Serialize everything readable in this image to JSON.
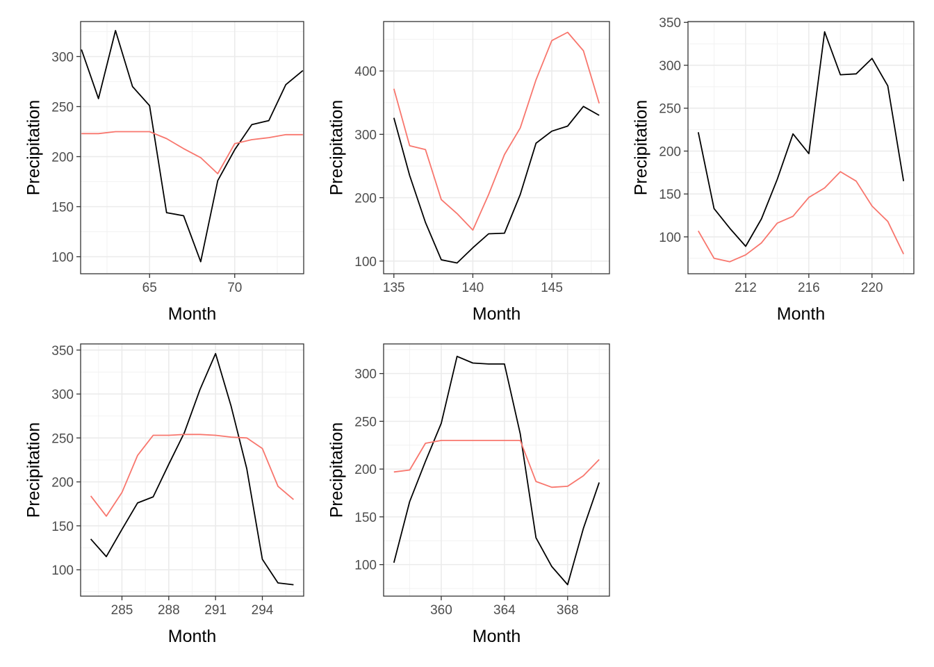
{
  "chart_data": [
    {
      "type": "line",
      "xlabel": "Month",
      "ylabel": "Precipitation",
      "xlim": [
        60.95,
        74.05
      ],
      "ylim": [
        83,
        335
      ],
      "x_ticks": [
        65,
        70
      ],
      "y_ticks": [
        100,
        150,
        200,
        250,
        300
      ],
      "grid": true,
      "series": [
        {
          "color": "#000000",
          "x": [
            61,
            62,
            63,
            64,
            65,
            66,
            67,
            68,
            69,
            70,
            71,
            72,
            73,
            74
          ],
          "y": [
            307,
            258,
            326,
            270,
            251,
            144,
            141,
            95,
            176,
            207,
            232,
            236,
            272,
            286
          ]
        },
        {
          "color": "#F8766D",
          "x": [
            61,
            62,
            63,
            64,
            65,
            66,
            67,
            68,
            69,
            70,
            71,
            72,
            73,
            74
          ],
          "y": [
            223,
            223,
            225,
            225,
            225,
            218,
            208,
            199,
            183,
            213,
            217,
            219,
            222,
            222
          ]
        }
      ]
    },
    {
      "type": "line",
      "xlabel": "Month",
      "ylabel": "Precipitation",
      "xlim": [
        134.35,
        148.65
      ],
      "ylim": [
        80,
        478
      ],
      "x_ticks": [
        135,
        140,
        145
      ],
      "y_ticks": [
        100,
        200,
        300,
        400
      ],
      "grid": true,
      "series": [
        {
          "color": "#000000",
          "x": [
            135,
            136,
            137,
            138,
            139,
            140,
            141,
            142,
            143,
            144,
            145,
            146,
            147,
            148
          ],
          "y": [
            326,
            235,
            161,
            102,
            97,
            121,
            143,
            144,
            205,
            286,
            305,
            313,
            344,
            330
          ]
        },
        {
          "color": "#F8766D",
          "x": [
            135,
            136,
            137,
            138,
            139,
            140,
            141,
            142,
            143,
            144,
            145,
            146,
            147,
            148
          ],
          "y": [
            372,
            282,
            276,
            197,
            175,
            149,
            205,
            268,
            310,
            386,
            448,
            461,
            432,
            349
          ]
        }
      ]
    },
    {
      "type": "line",
      "xlabel": "Month",
      "ylabel": "Precipitation",
      "xlim": [
        208.35,
        222.65
      ],
      "ylim": [
        57,
        351
      ],
      "x_ticks": [
        212,
        216,
        220
      ],
      "y_ticks": [
        100,
        150,
        200,
        250,
        300,
        350
      ],
      "grid": true,
      "series": [
        {
          "color": "#000000",
          "x": [
            209,
            210,
            211,
            212,
            213,
            214,
            215,
            216,
            217,
            218,
            219,
            220,
            221,
            222
          ],
          "y": [
            222,
            133,
            110,
            89,
            121,
            167,
            220,
            197,
            339,
            289,
            290,
            308,
            276,
            165
          ]
        },
        {
          "color": "#F8766D",
          "x": [
            209,
            210,
            211,
            212,
            213,
            214,
            215,
            216,
            217,
            218,
            219,
            220,
            221,
            222
          ],
          "y": [
            107,
            75,
            71,
            79,
            93,
            116,
            124,
            146,
            157,
            176,
            165,
            136,
            118,
            80
          ]
        }
      ]
    },
    {
      "type": "line",
      "xlabel": "Month",
      "ylabel": "Precipitation",
      "xlim": [
        282.35,
        296.65
      ],
      "ylim": [
        70,
        357
      ],
      "x_ticks": [
        285,
        288,
        291,
        294
      ],
      "y_ticks": [
        100,
        150,
        200,
        250,
        300,
        350
      ],
      "grid": true,
      "series": [
        {
          "color": "#000000",
          "x": [
            283,
            284,
            285,
            286,
            287,
            288,
            289,
            290,
            291,
            292,
            293,
            294,
            295,
            296
          ],
          "y": [
            135,
            115,
            146,
            176,
            183,
            220,
            256,
            305,
            346,
            286,
            215,
            112,
            85,
            83
          ]
        },
        {
          "color": "#F8766D",
          "x": [
            283,
            284,
            285,
            286,
            287,
            288,
            289,
            290,
            291,
            292,
            293,
            294,
            295,
            296
          ],
          "y": [
            184,
            161,
            188,
            230,
            253,
            253,
            254,
            254,
            253,
            251,
            250,
            238,
            195,
            180
          ]
        }
      ]
    },
    {
      "type": "line",
      "xlabel": "Month",
      "ylabel": "Precipitation",
      "xlim": [
        356.35,
        370.65
      ],
      "ylim": [
        67,
        331
      ],
      "x_ticks": [
        360,
        364,
        368
      ],
      "y_ticks": [
        100,
        150,
        200,
        250,
        300
      ],
      "grid": true,
      "series": [
        {
          "color": "#000000",
          "x": [
            357,
            358,
            359,
            360,
            361,
            362,
            363,
            364,
            365,
            366,
            367,
            368,
            369,
            370
          ],
          "y": [
            102,
            166,
            208,
            248,
            318,
            311,
            310,
            310,
            237,
            128,
            98,
            79,
            138,
            186
          ]
        },
        {
          "color": "#F8766D",
          "x": [
            357,
            358,
            359,
            360,
            361,
            362,
            363,
            364,
            365,
            366,
            367,
            368,
            369,
            370
          ],
          "y": [
            197,
            199,
            227,
            230,
            230,
            230,
            230,
            230,
            230,
            187,
            181,
            182,
            193,
            210
          ]
        }
      ]
    }
  ]
}
